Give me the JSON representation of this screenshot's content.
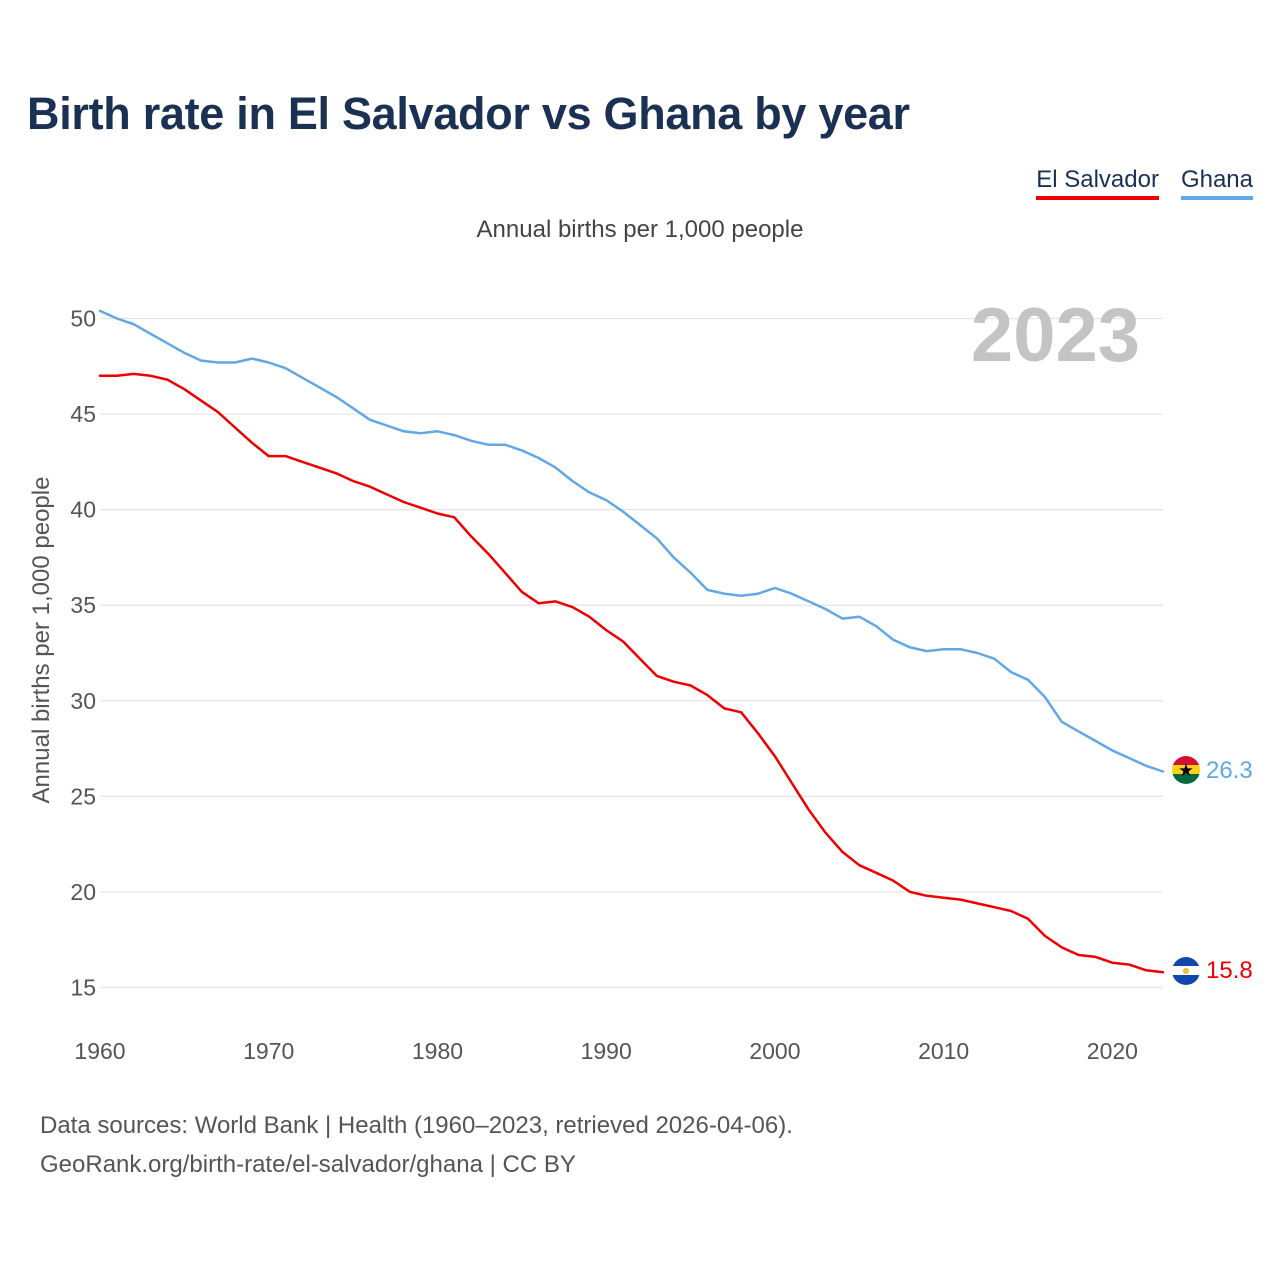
{
  "title": "Birth rate in El Salvador vs Ghana by year",
  "legend": [
    {
      "label": "El Salvador",
      "color": "#ee0000"
    },
    {
      "label": "Ghana",
      "color": "#62a8e5"
    }
  ],
  "source": {
    "line1": "Data sources: World Bank | Health (1960–2023, retrieved 2026-04-06).",
    "line2": "GeoRank.org/birth-rate/el-salvador/ghana | CC BY"
  },
  "chart_data": {
    "type": "line",
    "title": "Birth rate in El Salvador vs Ghana by year",
    "subtitle": "Annual births per 1,000 people",
    "ylabel": "Annual births per 1,000 people",
    "xlabel": "",
    "year_stamp": "2023",
    "xlim": [
      1960,
      2023
    ],
    "ylim": [
      13,
      52
    ],
    "yticks": [
      15,
      20,
      25,
      30,
      35,
      40,
      45,
      50
    ],
    "xticks": [
      1960,
      1970,
      1980,
      1990,
      2000,
      2010,
      2020
    ],
    "grid": true,
    "x": [
      1960,
      1961,
      1962,
      1963,
      1964,
      1965,
      1966,
      1967,
      1968,
      1969,
      1970,
      1971,
      1972,
      1973,
      1974,
      1975,
      1976,
      1977,
      1978,
      1979,
      1980,
      1981,
      1982,
      1983,
      1984,
      1985,
      1986,
      1987,
      1988,
      1989,
      1990,
      1991,
      1992,
      1993,
      1994,
      1995,
      1996,
      1997,
      1998,
      1999,
      2000,
      2001,
      2002,
      2003,
      2004,
      2005,
      2006,
      2007,
      2008,
      2009,
      2010,
      2011,
      2012,
      2013,
      2014,
      2015,
      2016,
      2017,
      2018,
      2019,
      2020,
      2021,
      2022,
      2023
    ],
    "series": [
      {
        "name": "El Salvador",
        "color": "#ee0000",
        "end_label": "15.8",
        "flag": "el-salvador-flag-icon",
        "values": [
          47.0,
          47.0,
          47.1,
          47.0,
          46.8,
          46.3,
          45.7,
          45.1,
          44.3,
          43.5,
          42.8,
          42.8,
          42.5,
          42.2,
          41.9,
          41.5,
          41.2,
          40.8,
          40.4,
          40.1,
          39.8,
          39.6,
          38.6,
          37.7,
          36.7,
          35.7,
          35.1,
          35.2,
          34.9,
          34.4,
          33.7,
          33.1,
          32.2,
          31.3,
          31.0,
          30.8,
          30.3,
          29.6,
          29.4,
          28.3,
          27.1,
          25.7,
          24.3,
          23.1,
          22.1,
          21.4,
          21.0,
          20.6,
          20.0,
          19.8,
          19.7,
          19.6,
          19.4,
          19.2,
          19.0,
          18.6,
          17.7,
          17.1,
          16.7,
          16.6,
          16.3,
          16.2,
          15.9,
          15.8
        ]
      },
      {
        "name": "Ghana",
        "color": "#62a8e5",
        "end_label": "26.3",
        "flag": "ghana-flag-icon",
        "values": [
          50.4,
          50.0,
          49.7,
          49.2,
          48.7,
          48.2,
          47.8,
          47.7,
          47.7,
          47.9,
          47.7,
          47.4,
          46.9,
          46.4,
          45.9,
          45.3,
          44.7,
          44.4,
          44.1,
          44.0,
          44.1,
          43.9,
          43.6,
          43.4,
          43.4,
          43.1,
          42.7,
          42.2,
          41.5,
          40.9,
          40.5,
          39.9,
          39.2,
          38.5,
          37.5,
          36.7,
          35.8,
          35.6,
          35.5,
          35.6,
          35.9,
          35.6,
          35.2,
          34.8,
          34.3,
          34.4,
          33.9,
          33.2,
          32.8,
          32.6,
          32.7,
          32.7,
          32.5,
          32.2,
          31.5,
          31.1,
          30.2,
          28.9,
          28.4,
          27.9,
          27.4,
          27.0,
          26.6,
          26.3
        ]
      }
    ]
  }
}
